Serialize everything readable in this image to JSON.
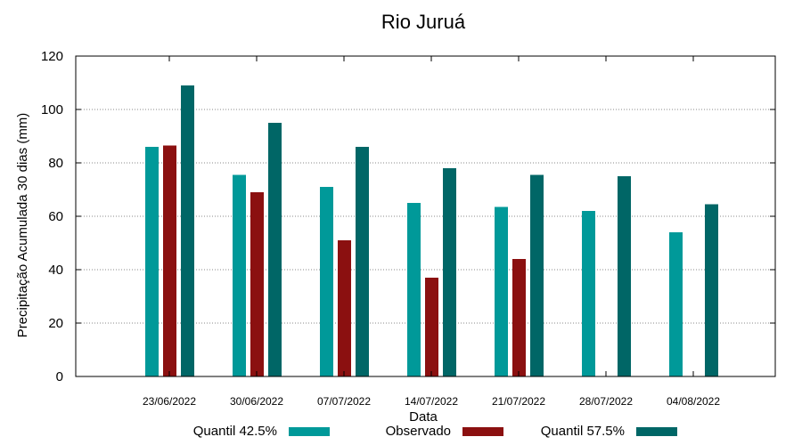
{
  "chart_data": {
    "type": "bar",
    "title": "Rio Juruá",
    "xlabel": "Data",
    "ylabel": "Precipitação Acumulada 30 dias (mm)",
    "ylim": [
      0,
      120
    ],
    "yticks": [
      0,
      20,
      40,
      60,
      80,
      100,
      120
    ],
    "grid": true,
    "legend_position": "bottom",
    "categories": [
      "23/06/2022",
      "30/06/2022",
      "07/07/2022",
      "14/07/2022",
      "21/07/2022",
      "28/07/2022",
      "04/08/2022"
    ],
    "series": [
      {
        "name": "Quantil 42.5%",
        "color": "#009999",
        "values": [
          86,
          75.5,
          71,
          65,
          63.5,
          62,
          54
        ]
      },
      {
        "name": "Observado",
        "color": "#8b1010",
        "values": [
          86.5,
          69,
          51,
          37,
          44,
          null,
          null
        ]
      },
      {
        "name": "Quantil 57.5%",
        "color": "#006666",
        "values": [
          109,
          95,
          86,
          78,
          75.5,
          75,
          64.5
        ]
      }
    ]
  }
}
